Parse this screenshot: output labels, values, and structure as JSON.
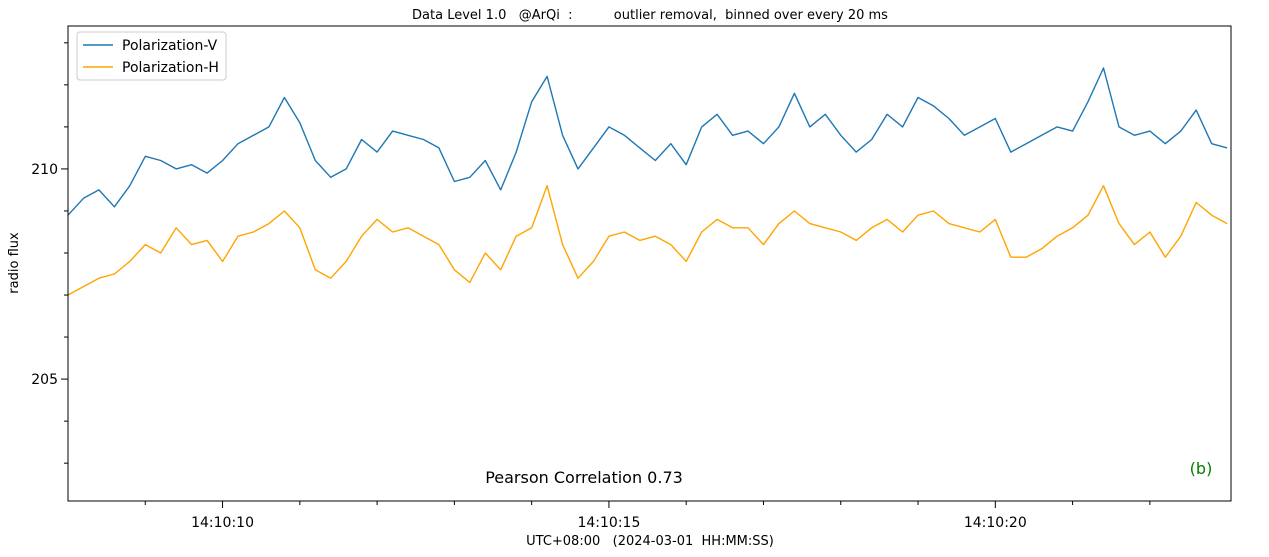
{
  "chart_data": {
    "type": "line",
    "title": "Data Level 1.0   @ArQi  :          outlier removal,  binned over every 20 ms",
    "xlabel": "UTC+08:00   (2024-03-01  HH:MM:SS)",
    "ylabel": "radio flux",
    "x_unit": "seconds after 14:10:00",
    "xlim": [
      8.0,
      23.05
    ],
    "ylim": [
      202.1,
      213.4
    ],
    "x_ticks": [
      {
        "value": 10,
        "label": "14:10:10"
      },
      {
        "value": 15,
        "label": "14:10:15"
      },
      {
        "value": 20,
        "label": "14:10:20"
      }
    ],
    "x_minor_ticks": [
      9,
      11,
      12,
      13,
      14,
      16,
      17,
      18,
      19,
      21,
      22
    ],
    "y_ticks": [
      {
        "value": 205,
        "label": "205"
      },
      {
        "value": 210,
        "label": "210"
      }
    ],
    "y_minor_ticks": [
      203,
      204,
      206,
      207,
      208,
      209,
      211,
      212,
      213
    ],
    "legend_position": "top-left",
    "annotation": "Pearson Correlation 0.73",
    "panel_label": "(b)",
    "series": [
      {
        "name": "Polarization-V",
        "color": "#1f77b4",
        "x": [
          8.0,
          8.2,
          8.4,
          8.6,
          8.8,
          9.0,
          9.2,
          9.4,
          9.6,
          9.8,
          10.0,
          10.2,
          10.4,
          10.6,
          10.8,
          11.0,
          11.2,
          11.4,
          11.6,
          11.8,
          12.0,
          12.2,
          12.4,
          12.6,
          12.8,
          13.0,
          13.2,
          13.4,
          13.6,
          13.8,
          14.0,
          14.2,
          14.4,
          14.6,
          14.8,
          15.0,
          15.2,
          15.4,
          15.6,
          15.8,
          16.0,
          16.2,
          16.4,
          16.6,
          16.8,
          17.0,
          17.2,
          17.4,
          17.6,
          17.8,
          18.0,
          18.2,
          18.4,
          18.6,
          18.8,
          19.0,
          19.2,
          19.4,
          19.6,
          19.8,
          20.0,
          20.2,
          20.4,
          20.6,
          20.8,
          21.0,
          21.2,
          21.4,
          21.6,
          21.8,
          22.0,
          22.2,
          22.4,
          22.6,
          22.8,
          23.0
        ],
        "values": [
          208.9,
          209.3,
          209.5,
          209.1,
          209.6,
          210.3,
          210.2,
          210.0,
          210.1,
          209.9,
          210.2,
          210.6,
          210.8,
          211.0,
          211.7,
          211.1,
          210.2,
          209.8,
          210.0,
          210.7,
          210.4,
          210.9,
          210.8,
          210.7,
          210.5,
          209.7,
          209.8,
          210.2,
          209.5,
          210.4,
          211.6,
          212.2,
          210.8,
          210.0,
          210.5,
          211.0,
          210.8,
          210.5,
          210.2,
          210.6,
          210.1,
          211.0,
          211.3,
          210.8,
          210.9,
          210.6,
          211.0,
          211.8,
          211.0,
          211.3,
          210.8,
          210.4,
          210.7,
          211.3,
          211.0,
          211.7,
          211.5,
          211.2,
          210.8,
          211.0,
          211.2,
          210.4,
          210.6,
          210.8,
          211.0,
          210.9,
          211.6,
          212.4,
          211.0,
          210.8,
          210.9,
          210.6,
          210.9,
          211.4,
          210.6,
          210.5
        ]
      },
      {
        "name": "Polarization-H",
        "color": "#ffa500",
        "x": [
          8.0,
          8.2,
          8.4,
          8.6,
          8.8,
          9.0,
          9.2,
          9.4,
          9.6,
          9.8,
          10.0,
          10.2,
          10.4,
          10.6,
          10.8,
          11.0,
          11.2,
          11.4,
          11.6,
          11.8,
          12.0,
          12.2,
          12.4,
          12.6,
          12.8,
          13.0,
          13.2,
          13.4,
          13.6,
          13.8,
          14.0,
          14.2,
          14.4,
          14.6,
          14.8,
          15.0,
          15.2,
          15.4,
          15.6,
          15.8,
          16.0,
          16.2,
          16.4,
          16.6,
          16.8,
          17.0,
          17.2,
          17.4,
          17.6,
          17.8,
          18.0,
          18.2,
          18.4,
          18.6,
          18.8,
          19.0,
          19.2,
          19.4,
          19.6,
          19.8,
          20.0,
          20.2,
          20.4,
          20.6,
          20.8,
          21.0,
          21.2,
          21.4,
          21.6,
          21.8,
          22.0,
          22.2,
          22.4,
          22.6,
          22.8,
          23.0
        ],
        "values": [
          207.0,
          207.2,
          207.4,
          207.5,
          207.8,
          208.2,
          208.0,
          208.6,
          208.2,
          208.3,
          207.8,
          208.4,
          208.5,
          208.7,
          209.0,
          208.6,
          207.6,
          207.4,
          207.8,
          208.4,
          208.8,
          208.5,
          208.6,
          208.4,
          208.2,
          207.6,
          207.3,
          208.0,
          207.6,
          208.4,
          208.6,
          209.6,
          208.2,
          207.4,
          207.8,
          208.4,
          208.5,
          208.3,
          208.4,
          208.2,
          207.8,
          208.5,
          208.8,
          208.6,
          208.6,
          208.2,
          208.7,
          209.0,
          208.7,
          208.6,
          208.5,
          208.3,
          208.6,
          208.8,
          208.5,
          208.9,
          209.0,
          208.7,
          208.6,
          208.5,
          208.8,
          207.9,
          207.9,
          208.1,
          208.4,
          208.6,
          208.9,
          209.6,
          208.7,
          208.2,
          208.5,
          207.9,
          208.4,
          209.2,
          208.9,
          208.7
        ]
      }
    ]
  }
}
